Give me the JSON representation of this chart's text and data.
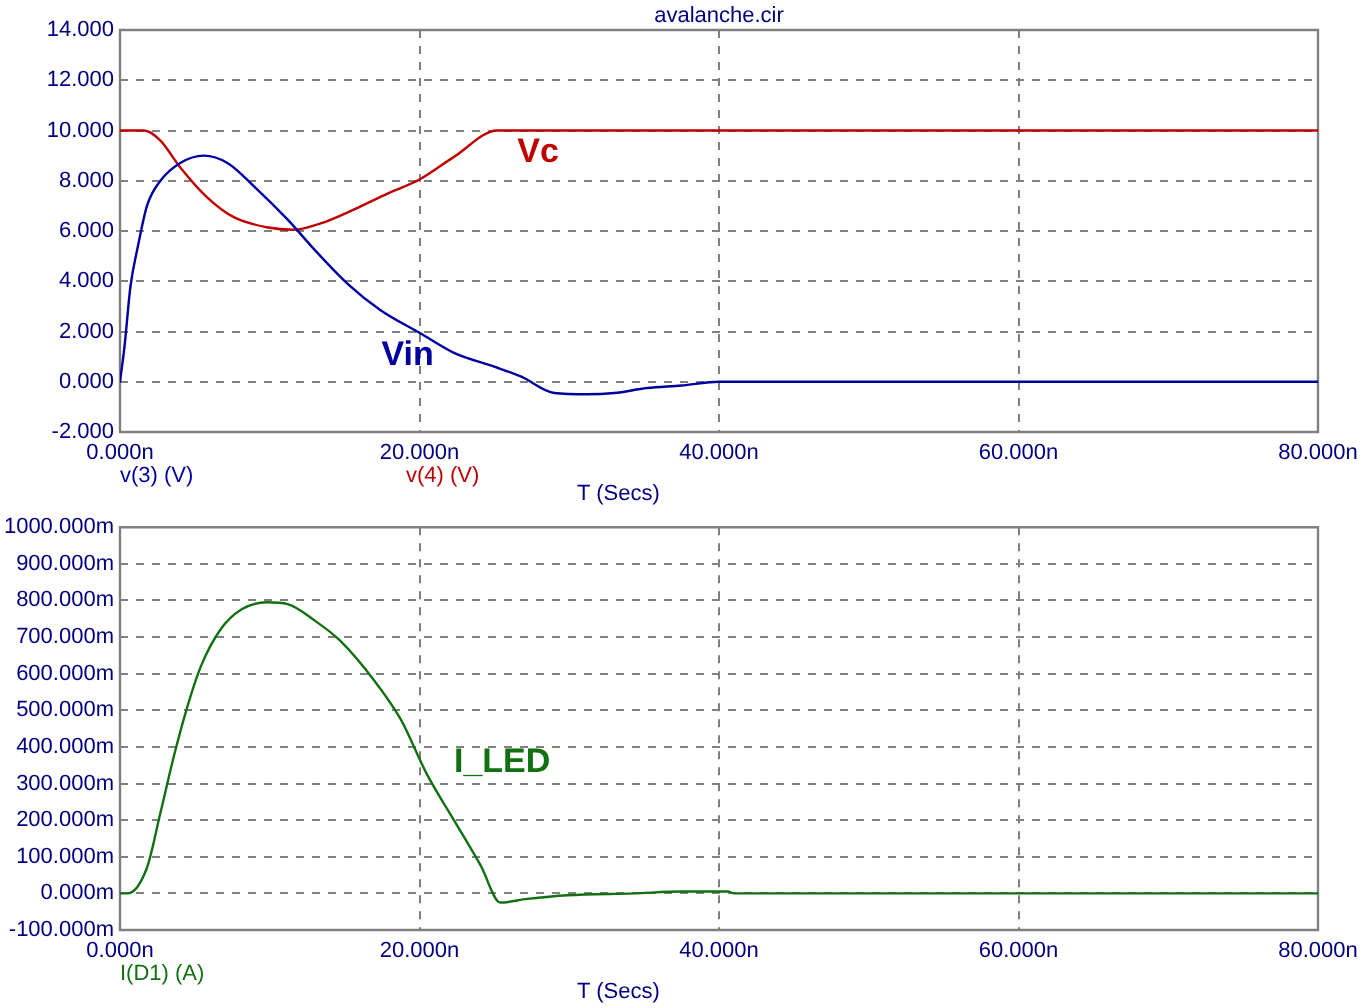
{
  "chart_data": [
    {
      "type": "line",
      "title": "avalanche.cir",
      "xlabel": "T (Secs)",
      "xlim": [
        0,
        80
      ],
      "xticks": [
        {
          "value": 0,
          "label": "0.000n"
        },
        {
          "value": 20,
          "label": "20.000n"
        },
        {
          "value": 40,
          "label": "40.000n"
        },
        {
          "value": 60,
          "label": "60.000n"
        },
        {
          "value": 80,
          "label": "80.000n"
        }
      ],
      "ylim": [
        -2,
        14
      ],
      "yticks": [
        {
          "value": -2,
          "label": "-2.000"
        },
        {
          "value": 0,
          "label": "0.000"
        },
        {
          "value": 2,
          "label": "2.000"
        },
        {
          "value": 4,
          "label": "4.000"
        },
        {
          "value": 6,
          "label": "6.000"
        },
        {
          "value": 8,
          "label": "8.000"
        },
        {
          "value": 10,
          "label": "10.000"
        },
        {
          "value": 12,
          "label": "12.000"
        },
        {
          "value": 14,
          "label": "14.000"
        }
      ],
      "grid": true,
      "legend": "bottom left",
      "marker": "none",
      "series": [
        {
          "name": "v(3) (V)",
          "color": "#0000a0",
          "x": [
            0,
            0.3,
            0.7,
            1.2,
            1.8,
            2.7,
            4.0,
            5.6,
            7.2,
            9.0,
            11.2,
            13.0,
            15.2,
            17.4,
            20.0,
            22.3,
            25.0,
            26.8,
            29.0,
            31.2,
            33.0,
            35.2,
            37.5,
            40.0,
            80
          ],
          "values": [
            0,
            1.4,
            3.8,
            5.4,
            7.0,
            8.0,
            8.7,
            9.0,
            8.7,
            7.75,
            6.45,
            5.25,
            3.9,
            2.85,
            1.95,
            1.15,
            0.6,
            0.2,
            -0.45,
            -0.5,
            -0.45,
            -0.25,
            -0.15,
            0,
            0
          ]
        },
        {
          "name": "v(4) (V)",
          "color": "#c00000",
          "x": [
            0,
            1.6,
            2.7,
            4.0,
            5.8,
            7.6,
            9.8,
            11.6,
            13.4,
            15.6,
            17.9,
            20.0,
            22.3,
            25.2,
            80
          ],
          "values": [
            10,
            10,
            9.6,
            8.55,
            7.35,
            6.55,
            6.15,
            6.05,
            6.3,
            6.85,
            7.5,
            8.05,
            8.95,
            10,
            10
          ]
        }
      ],
      "annotations": [
        "Vin",
        "Vc"
      ]
    },
    {
      "type": "line",
      "xlabel": "T (Secs)",
      "xlim": [
        0,
        80
      ],
      "xticks": [
        {
          "value": 0,
          "label": "0.000n"
        },
        {
          "value": 20,
          "label": "20.000n"
        },
        {
          "value": 40,
          "label": "40.000n"
        },
        {
          "value": 60,
          "label": "60.000n"
        },
        {
          "value": 80,
          "label": "80.000n"
        }
      ],
      "ylim": [
        -100,
        1000
      ],
      "yticks": [
        {
          "value": -100,
          "label": "-100.000m"
        },
        {
          "value": 0,
          "label": "0.000m"
        },
        {
          "value": 100,
          "label": "100.000m"
        },
        {
          "value": 200,
          "label": "200.000m"
        },
        {
          "value": 300,
          "label": "300.000m"
        },
        {
          "value": 400,
          "label": "400.000m"
        },
        {
          "value": 500,
          "label": "500.000m"
        },
        {
          "value": 600,
          "label": "600.000m"
        },
        {
          "value": 700,
          "label": "700.000m"
        },
        {
          "value": 800,
          "label": "800.000m"
        },
        {
          "value": 900,
          "label": "900.000m"
        },
        {
          "value": 1000,
          "label": "1000.000m"
        }
      ],
      "grid": true,
      "legend": "bottom left",
      "marker": "none",
      "series": [
        {
          "name": "I(D1) (A)",
          "color": "#127012",
          "x": [
            0,
            0.5,
            1.8,
            2.7,
            3.6,
            4.5,
            5.4,
            6.7,
            8.1,
            9.8,
            11.2,
            13.0,
            14.7,
            17.0,
            18.75,
            20.5,
            22.3,
            24.1,
            25.4,
            27.2,
            29.9,
            34.3,
            37.5,
            40.6,
            41,
            80
          ],
          "values": [
            0,
            0,
            70,
            220,
            375,
            510,
            620,
            720,
            775,
            795,
            790,
            745,
            690,
            580,
            475,
            325,
            200,
            75,
            -25,
            -15,
            -5,
            0,
            5,
            5,
            0,
            0
          ]
        }
      ],
      "annotations": [
        "I_LED"
      ]
    }
  ]
}
